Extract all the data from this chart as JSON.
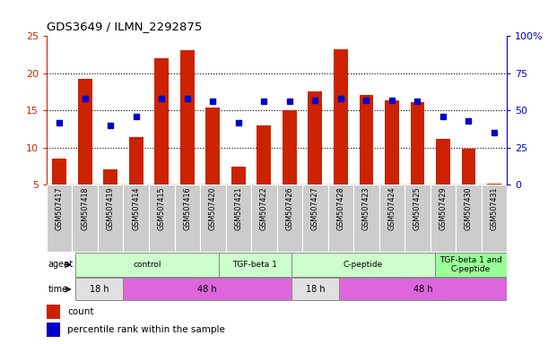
{
  "title": "GDS3649 / ILMN_2292875",
  "samples": [
    "GSM507417",
    "GSM507418",
    "GSM507419",
    "GSM507414",
    "GSM507415",
    "GSM507416",
    "GSM507420",
    "GSM507421",
    "GSM507422",
    "GSM507426",
    "GSM507427",
    "GSM507428",
    "GSM507423",
    "GSM507424",
    "GSM507425",
    "GSM507429",
    "GSM507430",
    "GSM507431"
  ],
  "counts": [
    8.5,
    19.3,
    7.1,
    11.4,
    22.0,
    23.1,
    15.4,
    7.4,
    13.0,
    15.0,
    17.6,
    23.2,
    17.1,
    16.4,
    16.1,
    11.2,
    9.8,
    5.1
  ],
  "percentiles": [
    42,
    58,
    40,
    46,
    58,
    58,
    56,
    42,
    56,
    56,
    57,
    58,
    57,
    57,
    56,
    46,
    43,
    35
  ],
  "bar_color": "#cc2200",
  "dot_color": "#0000cc",
  "ylim": [
    5,
    25
  ],
  "y2lim": [
    0,
    100
  ],
  "yticks": [
    5,
    10,
    15,
    20,
    25
  ],
  "y2ticks": [
    0,
    25,
    50,
    75,
    100
  ],
  "y2ticklabels": [
    "0",
    "25",
    "50",
    "75",
    "100%"
  ],
  "gridlines": [
    10,
    15,
    20
  ],
  "agent_groups": [
    {
      "label": "control",
      "start": 0,
      "end": 6,
      "color": "#ccffcc"
    },
    {
      "label": "TGF-beta 1",
      "start": 6,
      "end": 9,
      "color": "#ccffcc"
    },
    {
      "label": "C-peptide",
      "start": 9,
      "end": 15,
      "color": "#ccffcc"
    },
    {
      "label": "TGF-beta 1 and\nC-peptide",
      "start": 15,
      "end": 18,
      "color": "#99ff99"
    }
  ],
  "time_groups": [
    {
      "label": "18 h",
      "start": 0,
      "end": 2,
      "color": "#e0e0e0"
    },
    {
      "label": "48 h",
      "start": 2,
      "end": 9,
      "color": "#dd66dd"
    },
    {
      "label": "18 h",
      "start": 9,
      "end": 11,
      "color": "#e0e0e0"
    },
    {
      "label": "48 h",
      "start": 11,
      "end": 18,
      "color": "#dd66dd"
    }
  ],
  "legend_count_color": "#cc2200",
  "legend_pct_color": "#0000cc"
}
